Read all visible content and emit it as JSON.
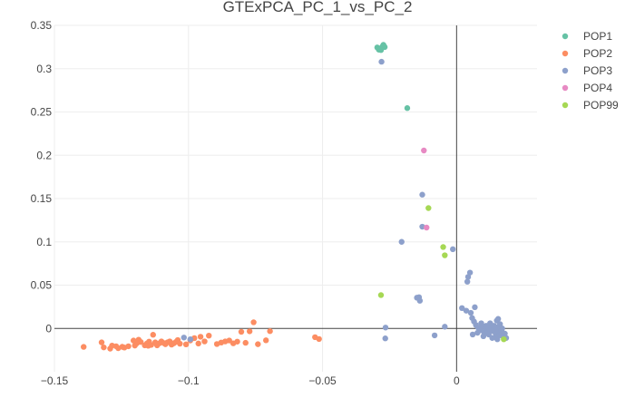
{
  "chart_data": {
    "type": "scatter",
    "title": "GTExPCA_PC_1_vs_PC_2",
    "xlabel": "",
    "ylabel": "",
    "xlim": [
      -0.15,
      0.03
    ],
    "ylim": [
      -0.05,
      0.35
    ],
    "x_ticks": [
      -0.15,
      -0.1,
      -0.05,
      0
    ],
    "x_tick_labels": [
      "−0.15",
      "−0.1",
      "−0.05",
      "0"
    ],
    "y_ticks": [
      0,
      0.05,
      0.1,
      0.15,
      0.2,
      0.25,
      0.3,
      0.35
    ],
    "y_tick_labels": [
      "0",
      "0.05",
      "0.1",
      "0.15",
      "0.2",
      "0.25",
      "0.3",
      "0.35"
    ],
    "grid": true,
    "zero_lines": true,
    "legend_position": "top-right",
    "series": [
      {
        "name": "POP1",
        "color": "#66c2a5",
        "points": [
          [
            -0.0296,
            0.3245
          ],
          [
            -0.0288,
            0.3232
          ],
          [
            -0.0282,
            0.3215
          ],
          [
            -0.0276,
            0.3258
          ],
          [
            -0.0273,
            0.3275
          ],
          [
            -0.0268,
            0.325
          ],
          [
            -0.029,
            0.322
          ],
          [
            -0.0184,
            0.2545
          ]
        ]
      },
      {
        "name": "POP2",
        "color": "#fc8d62",
        "points": [
          [
            -0.1391,
            -0.0213
          ],
          [
            -0.1324,
            -0.0161
          ],
          [
            -0.1316,
            -0.0219
          ],
          [
            -0.1292,
            -0.0233
          ],
          [
            -0.1285,
            -0.0198
          ],
          [
            -0.127,
            -0.0206
          ],
          [
            -0.1262,
            -0.0228
          ],
          [
            -0.1247,
            -0.0212
          ],
          [
            -0.1239,
            -0.0221
          ],
          [
            -0.1224,
            -0.0206
          ],
          [
            -0.12,
            -0.0198
          ],
          [
            -0.1193,
            -0.0172
          ],
          [
            -0.1186,
            -0.013
          ],
          [
            -0.1178,
            -0.0156
          ],
          [
            -0.1163,
            -0.0195
          ],
          [
            -0.1155,
            -0.0174
          ],
          [
            -0.1147,
            -0.0152
          ],
          [
            -0.1139,
            -0.019
          ],
          [
            -0.1132,
            -0.0073
          ],
          [
            -0.1124,
            -0.0161
          ],
          [
            -0.1117,
            -0.0195
          ],
          [
            -0.1109,
            -0.0172
          ],
          [
            -0.1101,
            -0.015
          ],
          [
            -0.1093,
            -0.0168
          ],
          [
            -0.1086,
            -0.0182
          ],
          [
            -0.1078,
            -0.016
          ],
          [
            -0.107,
            -0.015
          ],
          [
            -0.1063,
            -0.0187
          ],
          [
            -0.1055,
            -0.0172
          ],
          [
            -0.1047,
            -0.0156
          ],
          [
            -0.104,
            -0.0134
          ],
          [
            -0.1032,
            -0.0176
          ],
          [
            -0.1009,
            -0.0184
          ],
          [
            -0.0993,
            -0.0139
          ],
          [
            -0.0978,
            -0.0112
          ],
          [
            -0.0963,
            -0.0174
          ],
          [
            -0.0955,
            -0.0096
          ],
          [
            -0.094,
            -0.015
          ],
          [
            -0.0924,
            -0.0083
          ],
          [
            -0.0894,
            -0.018
          ],
          [
            -0.0878,
            -0.0163
          ],
          [
            -0.0863,
            -0.015
          ],
          [
            -0.0848,
            -0.0139
          ],
          [
            -0.0833,
            -0.0172
          ],
          [
            -0.0818,
            -0.0152
          ],
          [
            -0.0803,
            -0.0039
          ],
          [
            -0.0787,
            -0.0166
          ],
          [
            -0.0772,
            -0.0033
          ],
          [
            -0.0757,
            0.0071
          ],
          [
            -0.0741,
            -0.0182
          ],
          [
            -0.0711,
            -0.0137
          ],
          [
            -0.0696,
            -0.0031
          ],
          [
            -0.0528,
            -0.0101
          ],
          [
            -0.0513,
            -0.0122
          ],
          [
            -0.1205,
            -0.014
          ],
          [
            -0.115,
            -0.02
          ]
        ]
      },
      {
        "name": "POP3",
        "color": "#8da0cb",
        "points": [
          [
            -0.028,
            0.308
          ],
          [
            -0.0128,
            0.1545
          ],
          [
            -0.0128,
            0.1175
          ],
          [
            -0.0205,
            0.1
          ],
          [
            -0.0014,
            0.0915
          ],
          [
            0.005,
            0.0645
          ],
          [
            0.0043,
            0.0595
          ],
          [
            0.004,
            0.054
          ],
          [
            -0.014,
            0.036
          ],
          [
            -0.0148,
            0.0355
          ],
          [
            -0.0137,
            0.032
          ],
          [
            0.002,
            0.0235
          ],
          [
            0.0036,
            0.0205
          ],
          [
            0.0053,
            0.018
          ],
          [
            0.0068,
            0.0245
          ],
          [
            -0.0265,
            0.001
          ],
          [
            -0.0044,
            0.002
          ],
          [
            -0.0266,
            -0.0115
          ],
          [
            -0.0082,
            -0.008
          ],
          [
            -0.1017,
            -0.0105
          ],
          [
            -0.0993,
            -0.0125
          ],
          [
            0.0058,
            0.012
          ],
          [
            0.0065,
            0.008
          ],
          [
            0.0072,
            0.004
          ],
          [
            0.008,
            0.001
          ],
          [
            0.0088,
            -0.002
          ],
          [
            0.0095,
            0.003
          ],
          [
            0.0102,
            -0.004
          ],
          [
            0.0108,
            0.0005
          ],
          [
            0.0115,
            -0.005
          ],
          [
            0.0122,
            -0.001
          ],
          [
            0.0128,
            0.004
          ],
          [
            0.0135,
            -0.003
          ],
          [
            0.014,
            0.001
          ],
          [
            0.0146,
            -0.006
          ],
          [
            0.0151,
            -0.002
          ],
          [
            0.0156,
            0.002
          ],
          [
            0.016,
            -0.008
          ],
          [
            0.0165,
            -0.004
          ],
          [
            0.017,
            0.0
          ],
          [
            0.0175,
            -0.01
          ],
          [
            0.018,
            -0.006
          ],
          [
            0.011,
            0.003
          ],
          [
            0.0125,
            0.006
          ],
          [
            0.014,
            0.003
          ],
          [
            0.015,
            0.009
          ],
          [
            0.0155,
            0.011
          ],
          [
            0.0145,
            -0.01
          ],
          [
            0.0152,
            -0.0125
          ],
          [
            0.006,
            -0.007
          ],
          [
            0.01,
            -0.009
          ],
          [
            0.012,
            -0.007
          ],
          [
            0.0133,
            -0.011
          ],
          [
            0.0092,
            0.006
          ],
          [
            0.0078,
            -0.005
          ],
          [
            0.0162,
            0.005
          ],
          [
            0.0185,
            -0.011
          ],
          [
            0.0168,
            -0.002
          ]
        ]
      },
      {
        "name": "POP4",
        "color": "#e78ac3",
        "points": [
          [
            -0.0122,
            0.2055
          ],
          [
            -0.0112,
            0.1165
          ]
        ]
      },
      {
        "name": "POP99",
        "color": "#a6d854",
        "points": [
          [
            -0.0105,
            0.139
          ],
          [
            -0.005,
            0.094
          ],
          [
            -0.0044,
            0.0845
          ],
          [
            -0.0282,
            0.0385
          ],
          [
            0.0176,
            -0.0125
          ]
        ]
      }
    ]
  }
}
